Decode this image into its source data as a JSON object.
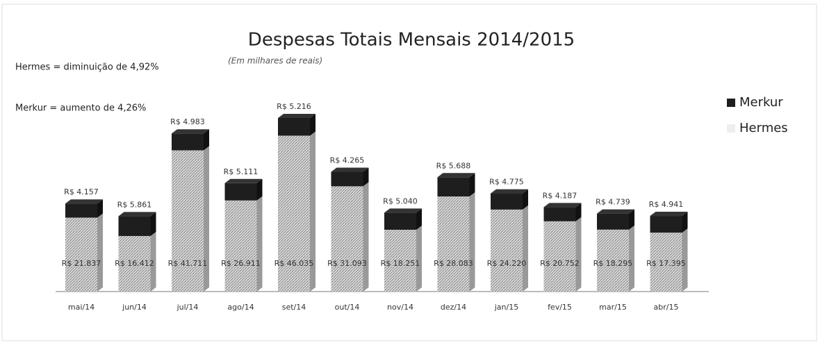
{
  "chart_data": {
    "type": "bar",
    "stacked": true,
    "title": "Despesas Totais Mensais 2014/2015",
    "subtitle": "(Em milhares de reais)",
    "annotations": [
      "Hermes = diminuição de 4,92%",
      "Merkur =  aumento de 4,26%"
    ],
    "categories": [
      "mai/14",
      "jun/14",
      "jul/14",
      "ago/14",
      "set/14",
      "out/14",
      "nov/14",
      "dez/14",
      "jan/15",
      "fev/15",
      "mar/15",
      "abr/15"
    ],
    "series": [
      {
        "name": "Hermes",
        "color": "#c4c4c4",
        "values": [
          21837,
          16412,
          41711,
          26911,
          46035,
          31093,
          18251,
          28083,
          24220,
          20752,
          18295,
          17395
        ],
        "value_labels": [
          "R$ 21.837",
          "R$ 16.412",
          "R$ 41.711",
          "R$ 26.911",
          "R$ 46.035",
          "R$ 31.093",
          "R$ 18.251",
          "R$ 28.083",
          "R$ 24.220",
          "R$ 20.752",
          "R$ 18.295",
          "R$ 17.395"
        ]
      },
      {
        "name": "Merkur",
        "color": "#1e1e1e",
        "values": [
          4157,
          5861,
          4983,
          5111,
          5216,
          4265,
          5040,
          5688,
          4775,
          4187,
          4739,
          4941
        ],
        "value_labels": [
          "R$ 4.157",
          "R$ 5.861",
          "R$ 4.983",
          "R$ 5.111",
          "R$ 5.216",
          "R$ 4.265",
          "R$ 5.040",
          "R$ 5.688",
          "R$ 4.775",
          "R$ 4.187",
          "R$ 4.739",
          "R$ 4.941"
        ]
      }
    ],
    "legend": "right"
  }
}
